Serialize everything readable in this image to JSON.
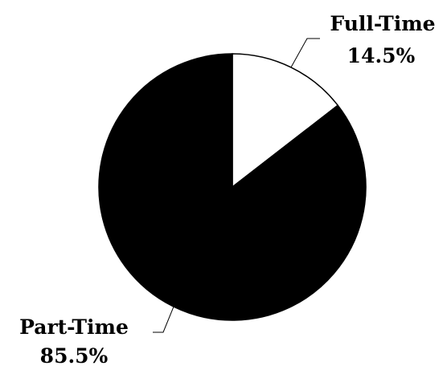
{
  "chart_data": {
    "type": "pie",
    "slices": [
      {
        "label": "Full-Time",
        "value": 14.5,
        "value_label": "14.5%",
        "color": "#ffffff"
      },
      {
        "label": "Part-Time",
        "value": 85.5,
        "value_label": "85.5%",
        "color": "#000000"
      }
    ],
    "start": "12 o'clock",
    "direction": "clockwise",
    "outline_color": "#000000",
    "labels": "outside with leader lines"
  }
}
